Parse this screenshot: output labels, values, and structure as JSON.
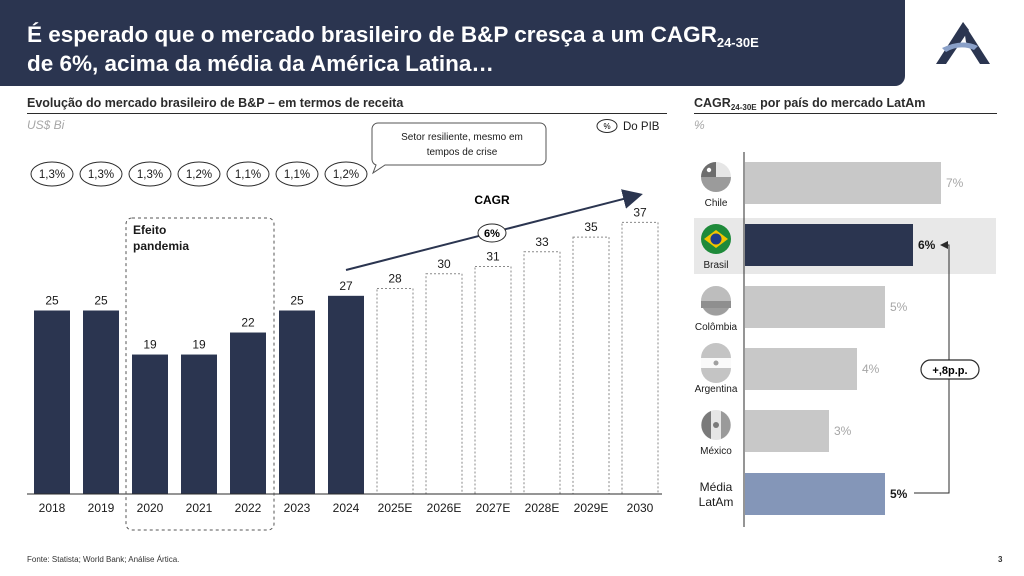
{
  "header": {
    "title_line1_pre": "É esperado que o mercado brasileiro de B&P cresça a um CAGR",
    "title_line1_sub": "24-30E",
    "title_line2": "de 6%, acima da média da América Latina…"
  },
  "left": {
    "section_title": "Evolução do mercado brasileiro de B&P – em termos de receita",
    "units": "US$ Bi",
    "pib_marker": "%",
    "pib_label": "Do PIB",
    "callout": "Setor resiliente, mesmo em tempos de crise",
    "pandemic_label": "Efeito pandemia",
    "cagr_label": "CAGR",
    "cagr_value": "6%"
  },
  "right": {
    "section_title_pre": "CAGR",
    "section_title_sub": "24-30E",
    "section_title_post": " por país do mercado LatAm",
    "units": "%",
    "diff_label": "+,8p.p."
  },
  "footnote": "Fonte: Statista; World Bank; Análise Ártica.",
  "page_number": "3",
  "colors": {
    "navy": "#2b3550",
    "projection_fill": "#ffffff",
    "gray_bar": "#c8c8c8",
    "latam_bar": "#8496b8",
    "highlight_bg": "#e8e8e8"
  },
  "chart_data": [
    {
      "type": "bar",
      "title": "Evolução do mercado brasileiro de B&P – em termos de receita",
      "ylabel": "US$ Bi",
      "categories": [
        "2018",
        "2019",
        "2020",
        "2021",
        "2022",
        "2023",
        "2024",
        "2025E",
        "2026E",
        "2027E",
        "2028E",
        "2029E",
        "2030"
      ],
      "values": [
        25,
        25,
        19,
        19,
        22,
        25,
        27,
        28,
        30,
        31,
        33,
        35,
        37
      ],
      "projected": [
        false,
        false,
        false,
        false,
        false,
        false,
        false,
        true,
        true,
        true,
        true,
        true,
        true
      ],
      "labels": [
        "25",
        "25",
        "19",
        "19",
        "22",
        "25",
        "27",
        "28",
        "30",
        "31",
        "33",
        "35",
        "37"
      ],
      "pib_share": [
        "1,3%",
        "1,3%",
        "1,3%",
        "1,2%",
        "1,1%",
        "1,1%",
        "1,2%"
      ],
      "ylim": [
        0,
        40
      ],
      "grid": false
    },
    {
      "type": "bar",
      "orientation": "horizontal",
      "title": "CAGR24-30E por país do mercado LatAm",
      "ylabel": "%",
      "categories": [
        "Chile",
        "Brasil",
        "Colômbia",
        "Argentina",
        "México",
        "Média LatAm"
      ],
      "values": [
        7,
        6,
        5,
        4,
        3,
        5
      ],
      "labels": [
        "7%",
        "6%",
        "5%",
        "4%",
        "3%",
        "5%"
      ],
      "highlight": "Brasil",
      "icons": [
        "chile-flag-icon",
        "brazil-flag-icon",
        "colombia-flag-icon",
        "argentina-flag-icon",
        "mexico-flag-icon",
        ""
      ],
      "xlim": [
        0,
        7.2
      ],
      "grid": false
    }
  ]
}
